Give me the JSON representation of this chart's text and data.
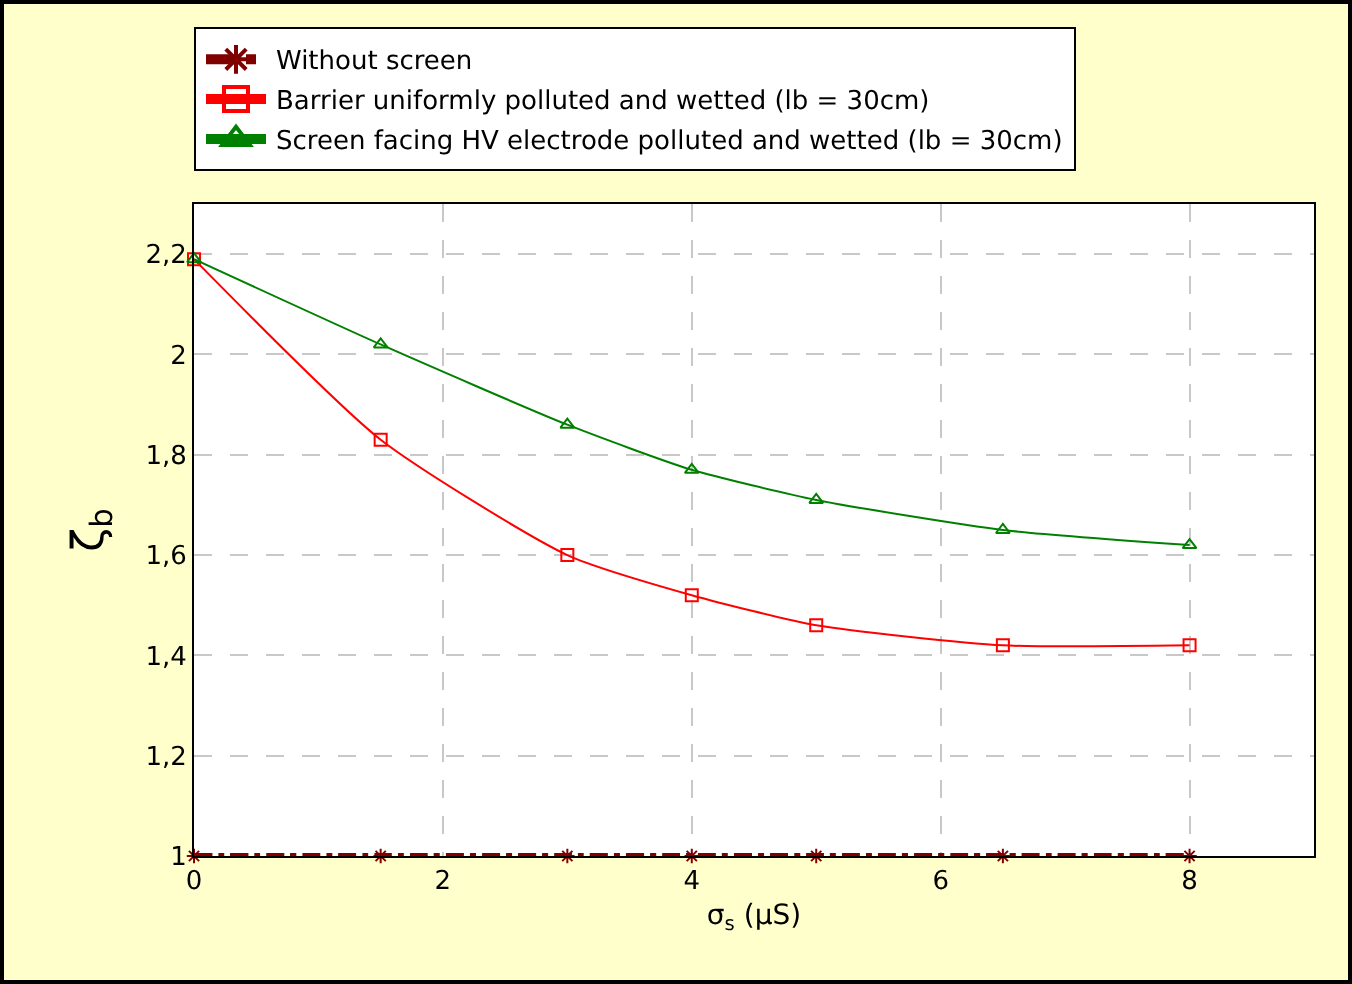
{
  "chart_data": {
    "type": "line",
    "xlabel": "σ$_{s}$ (µS)",
    "ylabel": "ζ$_{b}$",
    "x": [
      0,
      1.5,
      3,
      4,
      5,
      6.5,
      8
    ],
    "series": [
      {
        "name": "Without screen",
        "color": "#800000",
        "marker": "cross",
        "line_style": "dashed",
        "values": [
          1,
          1,
          1,
          1,
          1,
          1,
          1
        ]
      },
      {
        "name": "Barrier uniformly polluted and wetted (lb = 30cm)",
        "color": "#ff0000",
        "marker": "square",
        "line_style": "solid",
        "values": [
          2.19,
          1.83,
          1.6,
          1.52,
          1.46,
          1.42,
          1.42
        ]
      },
      {
        "name": "Screen facing HV electrode polluted and wetted (lb = 30cm)",
        "color": "#008000",
        "marker": "triangle",
        "line_style": "solid",
        "values": [
          2.19,
          2.02,
          1.86,
          1.77,
          1.71,
          1.65,
          1.62
        ]
      }
    ],
    "xlim": [
      0,
      9
    ],
    "xticks": [
      0,
      2,
      4,
      6,
      8
    ],
    "ylim": [
      1,
      2.3
    ],
    "yticks": [
      1,
      {
        "value": 1.2,
        "label": "1,2"
      },
      {
        "value": 1.4,
        "label": "1,4"
      },
      {
        "value": 1.6,
        "label": "1,6"
      },
      {
        "value": 1.8,
        "label": "1,8"
      },
      2,
      {
        "value": 2.2,
        "label": "2,2"
      }
    ],
    "grid": true,
    "legend": "top"
  }
}
